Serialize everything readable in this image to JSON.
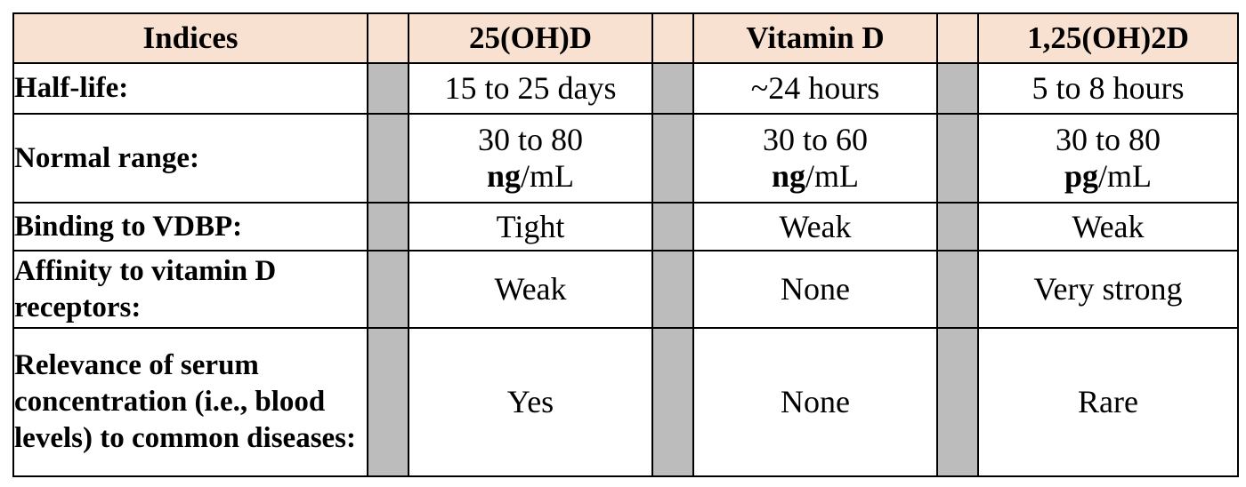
{
  "table": {
    "headers": {
      "indices": "Indices",
      "col1": "25(OH)D",
      "col2": "Vitamin D",
      "col3": "1,25(OH)2D"
    },
    "rows": [
      {
        "label": "Half-life:",
        "col1": "15 to 25 days",
        "col2": "~24 hours",
        "col3": "5 to 8 hours"
      },
      {
        "label": "Normal range:",
        "col1": {
          "value": "30 to 80",
          "unit_bold": "ng",
          "unit_rest": "/mL"
        },
        "col2": {
          "value": "30 to 60",
          "unit_bold": "ng",
          "unit_rest": "/mL"
        },
        "col3": {
          "value": "30 to 80",
          "unit_bold": "pg",
          "unit_rest": "/mL"
        }
      },
      {
        "label": "Binding to VDBP:",
        "col1": "Tight",
        "col2": "Weak",
        "col3": "Weak"
      },
      {
        "label": "Affinity to vitamin D receptors:",
        "col1": "Weak",
        "col2": "None",
        "col3": "Very strong"
      },
      {
        "label": "Relevance of serum concentration (i.e., blood levels) to common diseases:",
        "col1": "Yes",
        "col2": "None",
        "col3": "Rare"
      }
    ]
  },
  "colors": {
    "header_background": "#f9e1d2",
    "gap_column": "#bcbcbc",
    "border": "#000000"
  }
}
